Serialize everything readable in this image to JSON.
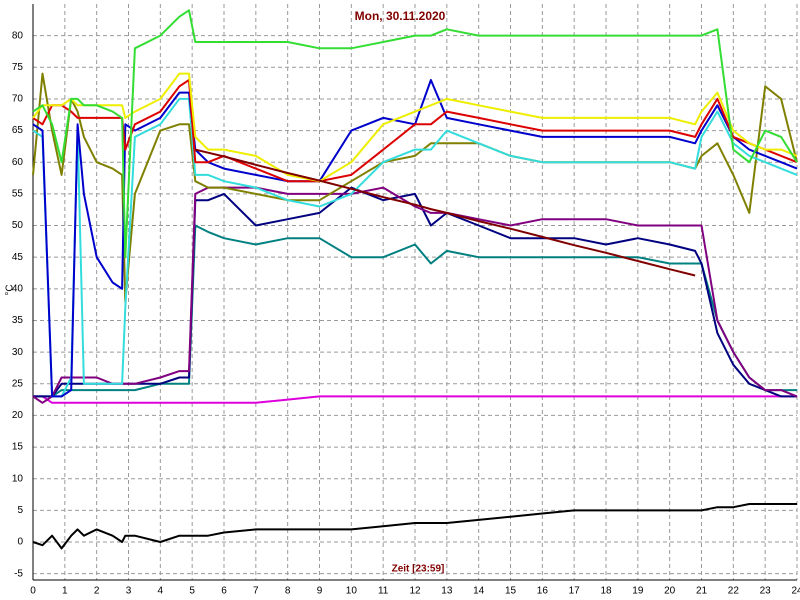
{
  "chart_data": {
    "type": "line",
    "title": "Mon, 30.11.2020",
    "x_label": "Zeit [23:59]",
    "y_label": "°C",
    "grid": true,
    "xlim": [
      0,
      24
    ],
    "xticks": [
      0,
      1,
      2,
      3,
      4,
      5,
      6,
      7,
      8,
      9,
      10,
      11,
      12,
      13,
      14,
      15,
      16,
      17,
      18,
      19,
      20,
      21,
      22,
      23,
      24
    ],
    "ylim": [
      -6,
      85
    ],
    "yticks": [
      -5,
      0,
      5,
      10,
      15,
      20,
      25,
      30,
      35,
      40,
      45,
      50,
      55,
      60,
      65,
      70,
      75,
      80
    ],
    "x": [
      0,
      0.3,
      0.6,
      0.9,
      1.2,
      1.4,
      1.6,
      2,
      2.5,
      2.8,
      2.9,
      3.2,
      4,
      4.6,
      4.9,
      5.1,
      5.5,
      6,
      7,
      8,
      9,
      10,
      11,
      12,
      12.5,
      13,
      14,
      15,
      16,
      17,
      18,
      19,
      20,
      20.8,
      21,
      21.5,
      22,
      22.5,
      23,
      23.5,
      24
    ],
    "series": [
      {
        "color": "#dd00dd",
        "values": [
          23,
          23,
          22,
          22,
          22,
          22,
          22,
          22,
          22,
          22,
          22,
          22,
          22,
          22,
          22,
          22,
          22,
          22,
          22,
          22.5,
          23,
          23,
          23,
          23,
          23,
          23,
          23,
          23,
          23,
          23,
          23,
          23,
          23,
          23,
          23,
          23,
          23,
          23,
          23,
          23,
          23
        ]
      },
      {
        "color": "#000000",
        "values": [
          0,
          -0.5,
          1,
          -1,
          1,
          2,
          1,
          2,
          1,
          0,
          1,
          1,
          0,
          1,
          1,
          1,
          1,
          1.5,
          2,
          2,
          2,
          2,
          2.5,
          3,
          3,
          3,
          3.5,
          4,
          4.5,
          5,
          5,
          5,
          5,
          5,
          5,
          5.5,
          5.5,
          6,
          6,
          6,
          6
        ]
      },
      {
        "color": "#008080",
        "values": [
          23,
          23,
          23,
          24,
          24,
          24,
          24,
          24,
          24,
          24,
          24,
          24,
          25,
          25,
          25,
          50,
          49,
          48,
          47,
          48,
          48,
          45,
          45,
          47,
          44,
          46,
          45,
          45,
          45,
          45,
          45,
          45,
          44,
          44,
          44,
          35,
          30,
          26,
          24,
          24,
          24
        ]
      },
      {
        "color": "#000080",
        "values": [
          23,
          23,
          23,
          25,
          25,
          25,
          25,
          25,
          25,
          25,
          25,
          25,
          25,
          26,
          26,
          54,
          54,
          55,
          50,
          51,
          52,
          56,
          54,
          55,
          50,
          52,
          50,
          48,
          48,
          48,
          47,
          48,
          47,
          46,
          44,
          33,
          28,
          25,
          24,
          23,
          23
        ]
      },
      {
        "color": "#800080",
        "values": [
          23,
          22,
          23,
          26,
          26,
          26,
          26,
          26,
          25,
          25,
          25,
          25,
          26,
          27,
          27,
          55,
          56,
          56,
          56,
          55,
          55,
          55,
          56,
          53,
          52,
          52,
          51,
          50,
          51,
          51,
          51,
          50,
          50,
          50,
          50,
          35,
          30,
          26,
          24,
          24,
          23
        ]
      },
      {
        "color": "#808000",
        "values": [
          58,
          74,
          65,
          58,
          70,
          68,
          64,
          60,
          59,
          58,
          38,
          55,
          65,
          66,
          66,
          57,
          56,
          56,
          55,
          54,
          54,
          57,
          60,
          61,
          63,
          63,
          63,
          61,
          60,
          60,
          60,
          60,
          60,
          59,
          61,
          63,
          58,
          52,
          72,
          70,
          60
        ]
      },
      {
        "color": "#33dddd",
        "values": [
          65,
          64,
          23,
          23,
          26,
          65,
          25,
          25,
          25,
          25,
          37,
          64,
          66,
          70,
          70,
          58,
          58,
          57,
          56,
          54,
          53,
          55,
          60,
          62,
          62,
          65,
          63,
          61,
          60,
          60,
          60,
          60,
          60,
          59,
          64,
          68,
          63,
          61,
          60,
          59,
          58
        ]
      },
      {
        "color": "#0000cc",
        "values": [
          66,
          65,
          23,
          23,
          24,
          66,
          55,
          45,
          41,
          40,
          66,
          65,
          67,
          71,
          71,
          62,
          60,
          59,
          58,
          57,
          57,
          65,
          67,
          66,
          73,
          67,
          66,
          65,
          64,
          64,
          64,
          64,
          64,
          63,
          65,
          69,
          64,
          62,
          61,
          60,
          59
        ]
      },
      {
        "color": "#dd0000",
        "values": [
          67,
          66,
          69,
          69,
          68,
          67,
          67,
          67,
          67,
          67,
          62,
          66,
          68,
          72,
          73,
          60,
          60,
          61,
          59,
          57,
          57,
          58,
          62,
          66,
          66,
          68,
          67,
          66,
          65,
          65,
          65,
          65,
          65,
          64,
          66,
          70,
          64,
          63,
          62,
          61,
          60
        ]
      },
      {
        "color": "#eeee00",
        "values": [
          67,
          69,
          69,
          69,
          70,
          69,
          69,
          69,
          69,
          69,
          67,
          68,
          70,
          74,
          74,
          64,
          62,
          62,
          61,
          58,
          57,
          60,
          66,
          68,
          69,
          70,
          69,
          68,
          67,
          67,
          67,
          67,
          67,
          66,
          68,
          71,
          65,
          63,
          62,
          62,
          61
        ]
      },
      {
        "color": "#33dd33",
        "values": [
          68,
          69,
          66,
          60,
          70,
          70,
          69,
          69,
          68,
          67,
          45,
          78,
          80,
          83,
          84,
          79,
          79,
          79,
          79,
          79,
          78,
          78,
          79,
          80,
          80,
          81,
          80,
          80,
          80,
          80,
          80,
          80,
          80,
          80,
          80,
          81,
          62,
          60,
          65,
          64,
          60
        ]
      },
      {
        "color": "#800000",
        "values": [
          null,
          null,
          null,
          null,
          null,
          null,
          null,
          null,
          null,
          null,
          null,
          null,
          null,
          null,
          null,
          62,
          61.5,
          60.9,
          59.6,
          58.3,
          57.1,
          55.8,
          54.5,
          53.3,
          52.6,
          52,
          50.7,
          49.5,
          48.2,
          46.9,
          45.7,
          44.4,
          43.1,
          42.1,
          null,
          null,
          null,
          null,
          null,
          null,
          null
        ]
      }
    ]
  }
}
